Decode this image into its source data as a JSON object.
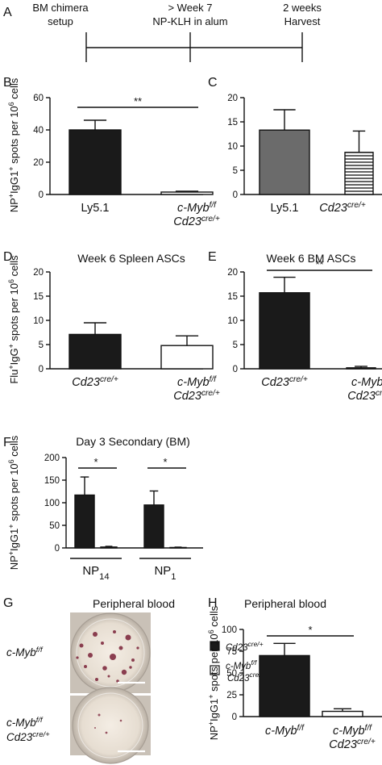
{
  "figure": {
    "timeline": {
      "panel": "A",
      "labels": [
        {
          "line1": "BM chimera",
          "line2": "setup"
        },
        {
          "line1": "> Week 7",
          "line2": "NP-KLH in alum"
        },
        {
          "line1": "2 weeks",
          "line2": "Harvest"
        }
      ]
    },
    "legend_F": [
      {
        "main": "Cd23",
        "sup": "cre/+",
        "fill": "#1a1a1a"
      },
      {
        "main": "c-Myb",
        "sup": "f/f",
        "main2": "Cd23",
        "sup2": "cre/+",
        "fill": "#ffffff"
      }
    ],
    "panel_G": {
      "panel": "G",
      "title": "Peripheral blood",
      "rows": [
        {
          "main": "c-Myb",
          "sup": "f/f"
        },
        {
          "main": "c-Myb",
          "sup": "f/f",
          "main2": "Cd23",
          "sup2": "cre/+"
        }
      ]
    }
  },
  "chart_data": [
    {
      "panel": "B",
      "type": "bar",
      "ylabel_html": "NP⁺IgG1⁺ spots per 10⁶ cells",
      "ylim": [
        0,
        60
      ],
      "yticks": [
        0,
        20,
        40,
        60
      ],
      "categories": [
        {
          "main": "Ly5.1"
        },
        {
          "main": "c-Myb",
          "sup": "f/f",
          "main2": "Cd23",
          "sup2": "cre/+"
        }
      ],
      "values": [
        40,
        1.5
      ],
      "errors": [
        6,
        0.5
      ],
      "fills": [
        "solid",
        "white"
      ],
      "significance": [
        {
          "between": [
            0,
            1
          ],
          "label": "**"
        }
      ]
    },
    {
      "panel": "C",
      "type": "bar",
      "ylim": [
        0,
        20
      ],
      "yticks": [
        0,
        5,
        10,
        15,
        20
      ],
      "categories": [
        {
          "main": "Ly5.1"
        },
        {
          "main": "Cd23",
          "sup": "cre/+"
        }
      ],
      "values": [
        13.3,
        8.7
      ],
      "errors": [
        4.2,
        4.4
      ],
      "fills": [
        "gray",
        "striped"
      ]
    },
    {
      "panel": "D",
      "type": "bar",
      "title": "Week 6 Spleen ASCs",
      "ylabel_html": "Flu⁺IgG⁺ spots per 10⁶ cells",
      "ylim": [
        0,
        20
      ],
      "yticks": [
        0,
        5,
        10,
        15,
        20
      ],
      "categories": [
        {
          "main": "Cd23",
          "sup": "cre/+"
        },
        {
          "main": "c-Myb",
          "sup": "f/f",
          "main2": "Cd23",
          "sup2": "cre/+"
        }
      ],
      "values": [
        7.1,
        4.8
      ],
      "errors": [
        2.4,
        2.0
      ],
      "fills": [
        "solid",
        "white"
      ]
    },
    {
      "panel": "E",
      "type": "bar",
      "title": "Week 6 BM ASCs",
      "ylim": [
        0,
        20
      ],
      "yticks": [
        0,
        5,
        10,
        15,
        20
      ],
      "categories": [
        {
          "main": "Cd23",
          "sup": "cre/+"
        },
        {
          "main": "c-Myb",
          "sup": "f/f",
          "main2": "Cd23",
          "sup2": "cre/+"
        }
      ],
      "values": [
        15.7,
        0.2
      ],
      "errors": [
        3.2,
        0.3
      ],
      "fills": [
        "solid",
        "white"
      ],
      "significance": [
        {
          "between": [
            0,
            1
          ],
          "label": "**"
        }
      ]
    },
    {
      "panel": "F",
      "type": "bar",
      "title": "Day 3 Secondary (BM)",
      "ylabel_html": "NP⁺IgG1⁺ spots per 10⁶ cells",
      "ylim": [
        0,
        200
      ],
      "yticks": [
        0,
        50,
        100,
        150,
        200
      ],
      "groups": [
        {
          "main": "NP",
          "sub": "14"
        },
        {
          "main": "NP",
          "sub": "1"
        }
      ],
      "series": [
        {
          "name": "Cd23cre/+",
          "values": [
            117,
            95
          ],
          "errors": [
            40,
            31
          ],
          "fill": "solid"
        },
        {
          "name": "c-Mybf/f Cd23cre/+",
          "values": [
            2,
            1
          ],
          "errors": [
            1.5,
            0.8
          ],
          "fill": "white"
        }
      ],
      "significance": [
        {
          "group": 0,
          "label": "*"
        },
        {
          "group": 1,
          "label": "*"
        }
      ]
    },
    {
      "panel": "H",
      "type": "bar",
      "title": "Peripheral blood",
      "ylabel_html": "NP⁺IgG1⁺ spots per 10⁶ cells",
      "ylim": [
        0,
        100
      ],
      "yticks": [
        0,
        25,
        50,
        75,
        100
      ],
      "categories": [
        {
          "main": "c-Myb",
          "sup": "f/f"
        },
        {
          "main": "c-Myb",
          "sup": "f/f",
          "main2": "Cd23",
          "sup2": "cre/+"
        }
      ],
      "values": [
        70,
        6
      ],
      "errors": [
        14,
        3
      ],
      "fills": [
        "solid",
        "white"
      ],
      "significance": [
        {
          "between": [
            0,
            1
          ],
          "label": "*"
        }
      ]
    }
  ]
}
